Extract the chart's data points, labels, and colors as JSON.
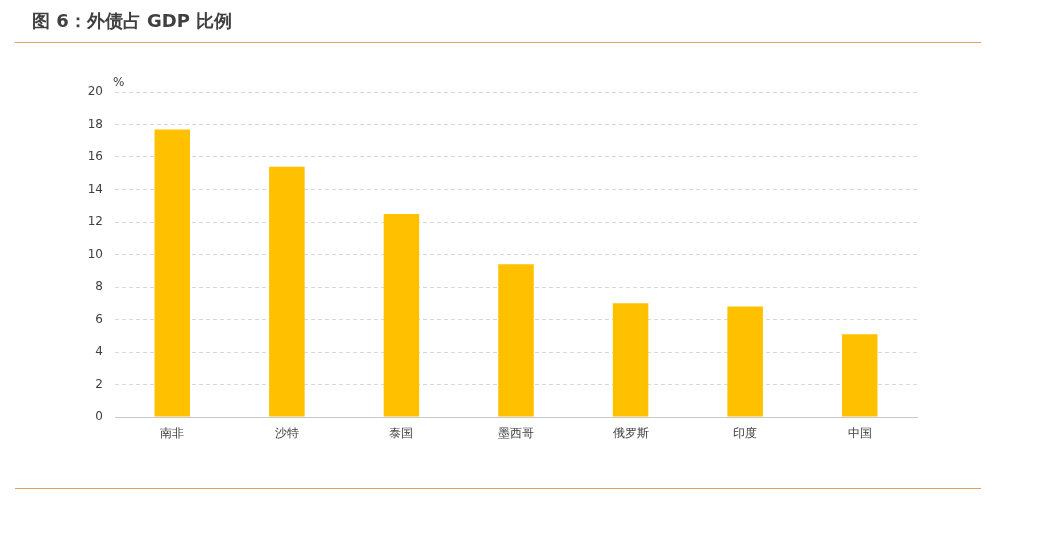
{
  "chart_data": {
    "type": "bar",
    "title": "图 6：外债占 GDP 比例",
    "ylabel": "%",
    "categories": [
      "南非",
      "沙特",
      "泰国",
      "墨西哥",
      "俄罗斯",
      "印度",
      "中国"
    ],
    "values": [
      17.7,
      15.4,
      12.5,
      9.4,
      7.0,
      6.8,
      5.1
    ],
    "color": "#ffc000",
    "ylim": [
      0,
      20
    ],
    "yticks": [
      0,
      2,
      4,
      6,
      8,
      10,
      12,
      14,
      16,
      18,
      20
    ],
    "grid": "y",
    "legend": false
  }
}
